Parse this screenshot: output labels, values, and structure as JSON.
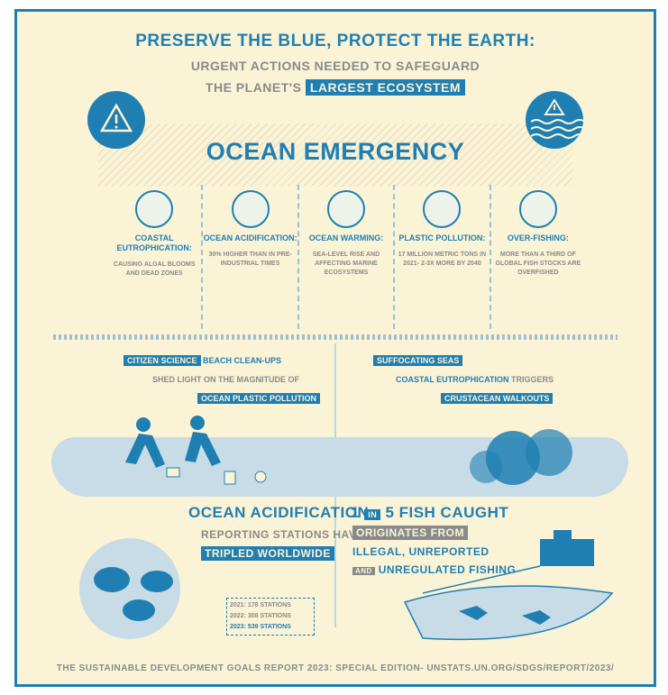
{
  "header": {
    "line1": "PRESERVE THE BLUE, PROTECT THE EARTH:",
    "line2": "URGENT ACTIONS NEEDED TO SAFEGUARD",
    "line3_prefix": "THE PLANET'S",
    "line3_highlight": "LARGEST ECOSYSTEM"
  },
  "emergency_title": "OCEAN EMERGENCY",
  "cards": [
    {
      "icon": "eutrophication-icon",
      "title": "COASTAL EUTROPHICATION:",
      "desc": "CAUSING ALGAL BLOOMS AND DEAD ZONES"
    },
    {
      "icon": "acidification-icon",
      "title": "OCEAN ACIDIFICATION:",
      "desc": "30% HIGHER THAN IN PRE-INDUSTRIAL TIMES"
    },
    {
      "icon": "warming-icon",
      "title": "OCEAN WARMING:",
      "desc": "SEA-LEVEL RISE AND AFFECTING MARINE ECOSYSTEMS"
    },
    {
      "icon": "plastic-icon",
      "title": "PLASTIC POLLUTION:",
      "desc": "17 MILLION METRIC TONS IN 2021- 2-3X MORE BY 2040"
    },
    {
      "icon": "fishing-boat-icon",
      "title": "OVER-FISHING:",
      "desc": "MORE THAN A THIRD OF GLOBAL FISH STOCKS ARE OVERFISHED"
    }
  ],
  "left_story": {
    "tag": "CITIZEN SCIENCE",
    "rest": "BEACH CLEAN-UPS",
    "line2": "SHED LIGHT ON THE MAGNITUDE OF",
    "line3": "OCEAN PLASTIC POLLUTION"
  },
  "right_story": {
    "tag": "SUFFOCATING SEAS",
    "line2_a": "COASTAL EUTROPHICATION",
    "line2_b": "TRIGGERS",
    "line3": "CRUSTACEAN WALKOUTS"
  },
  "acid": {
    "title": "OCEAN ACIDIFICATION",
    "line2": "REPORTING STATIONS HAVE",
    "line3": "TRIPLED WORLDWIDE",
    "stations": [
      "2021: 178 STATIONS",
      "2022: 308 STATIONS",
      "2023: 539 STATIONS"
    ]
  },
  "fish": {
    "line1_a": "1",
    "line1_in": "IN",
    "line1_b": "5 FISH CAUGHT",
    "line2": "ORIGINATES FROM",
    "line3": "ILLEGAL, UNREPORTED",
    "line4_and": "AND",
    "line4": "UNREGULATED FISHING"
  },
  "footer": "THE SUSTAINABLE DEVELOPMENT GOALS REPORT 2023: SPECIAL EDITION- UNSTATS.UN.ORG/SDGS/REPORT/2023/",
  "colors": {
    "primary": "#1f7fb3",
    "background": "#fbf3d6",
    "muted": "#8a8a8a",
    "water": "#c7dce6"
  }
}
